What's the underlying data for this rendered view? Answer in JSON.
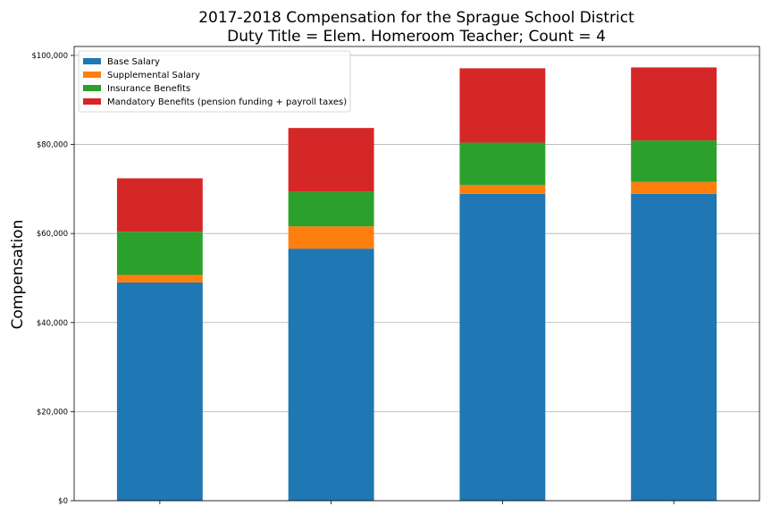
{
  "chart_data": {
    "type": "bar",
    "stacked": true,
    "title": "2017-2018 Compensation for the Sprague School District",
    "subtitle": "Duty Title = Elem. Homeroom Teacher; Count = 4",
    "xlabel": "",
    "ylabel": "Compensation",
    "ylim": [
      0,
      102000
    ],
    "yticks": [
      0,
      20000,
      40000,
      60000,
      80000,
      100000
    ],
    "ytick_labels": [
      "$0",
      "$20,000",
      "$40,000",
      "$60,000",
      "$80,000",
      "$100,000"
    ],
    "grid": "horizontal",
    "legend_position": "top-left",
    "categories": [
      "",
      "",
      "",
      ""
    ],
    "series": [
      {
        "name": "Base Salary",
        "color": "#1f77b4",
        "values": [
          49000,
          56600,
          68900,
          68900
        ]
      },
      {
        "name": "Supplemental Salary",
        "color": "#ff7f0e",
        "values": [
          1700,
          5000,
          2000,
          2700
        ]
      },
      {
        "name": "Insurance Benefits",
        "color": "#2ca02c",
        "values": [
          9700,
          7800,
          9500,
          9300
        ]
      },
      {
        "name": "Mandatory Benefits (pension funding + payroll taxes)",
        "color": "#d62728",
        "values": [
          12000,
          14300,
          16700,
          16400
        ]
      }
    ]
  }
}
